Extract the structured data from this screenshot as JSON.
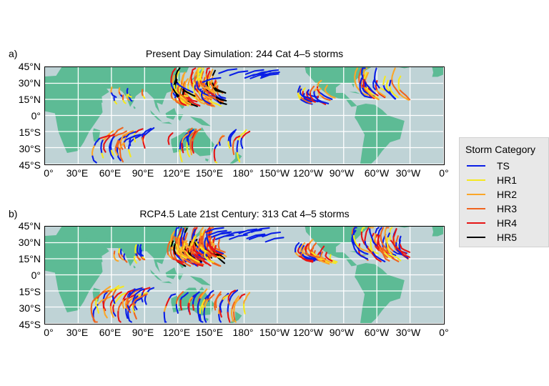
{
  "panels": [
    {
      "letter": "a)",
      "title": "Present Day Simulation: 244 Cat 4–5 storms"
    },
    {
      "letter": "b)",
      "title": "RCP4.5 Late 21st Century: 313 Cat 4–5 storms"
    }
  ],
  "axes": {
    "lat_labels": [
      "45°N",
      "30°N",
      "15°N",
      "0°",
      "15°S",
      "30°S",
      "45°S"
    ],
    "lon_labels": [
      "0°",
      "30°E",
      "60°E",
      "90°E",
      "120°E",
      "150°E",
      "180°",
      "150°W",
      "120°W",
      "90°W",
      "60°W",
      "30°W",
      "0°"
    ]
  },
  "legend": {
    "title": "Storm Category",
    "items": [
      {
        "label": "TS",
        "color": "#0a1ee6"
      },
      {
        "label": "HR1",
        "color": "#f5e81e"
      },
      {
        "label": "HR2",
        "color": "#fba628"
      },
      {
        "label": "HR3",
        "color": "#f0641e"
      },
      {
        "label": "HR4",
        "color": "#e61414"
      },
      {
        "label": "HR5",
        "color": "#000000"
      }
    ]
  },
  "colors": {
    "ocean": "#bfd3d6",
    "land": "#5dbb95",
    "grid": "#ffffff"
  }
}
